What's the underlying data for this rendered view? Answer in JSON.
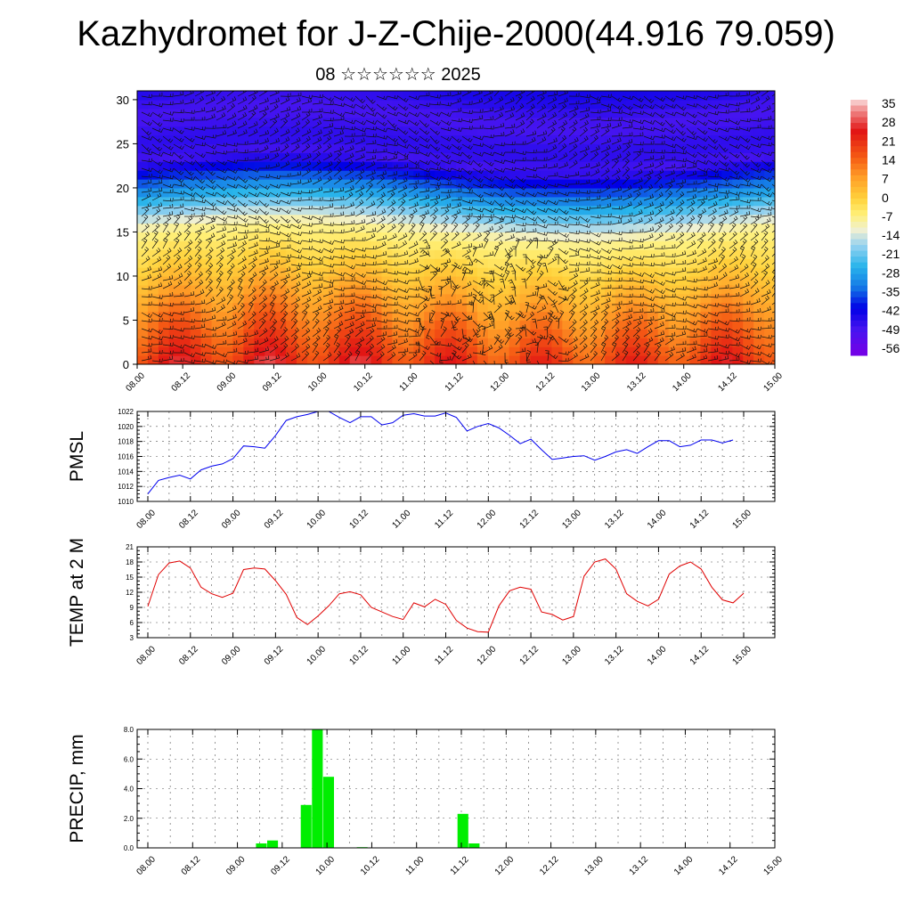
{
  "header": {
    "title": "Kazhydromet for J-Z-Chije-2000(44.916 79.059)",
    "date": "08 ☆☆☆☆☆☆ 2025"
  },
  "time_labels": [
    "08.00",
    "08.12",
    "09.00",
    "09.12",
    "10.00",
    "10.12",
    "11.00",
    "11.12",
    "12.00",
    "12.12",
    "13.00",
    "13.12",
    "14.00",
    "14.12",
    "15.00"
  ],
  "colors": {
    "pmsl_line": "#0000ee",
    "temp_line": "#e00000",
    "precip_bar": "#00ee00",
    "grid": "#555555"
  },
  "chart_data": [
    {
      "type": "heatmap",
      "x_categories": [
        "08.00",
        "08.12",
        "09.00",
        "09.12",
        "10.00",
        "10.12",
        "11.00",
        "11.12",
        "12.00",
        "12.12",
        "13.00",
        "13.12",
        "14.00",
        "14.12",
        "15.00"
      ],
      "ylim": [
        0,
        31
      ],
      "yticks": [
        0,
        5,
        10,
        15,
        20,
        25,
        30
      ],
      "colorbar": {
        "labels": [
          "35",
          "28",
          "21",
          "14",
          "7",
          "0",
          "-7",
          "-14",
          "-21",
          "-28",
          "-35",
          "-42",
          "-49",
          "-56"
        ],
        "range": [
          -60,
          38
        ]
      },
      "overlay": "wind barbs"
    },
    {
      "type": "line",
      "ylabel": "PMSL",
      "ylim": [
        1010,
        1022
      ],
      "yticks": [
        1010,
        1012,
        1014,
        1016,
        1018,
        1020,
        1022
      ],
      "x_start": 0,
      "x_step": 3,
      "values": [
        1011.0,
        1012.8,
        1013.2,
        1013.5,
        1013.0,
        1014.2,
        1014.7,
        1015.0,
        1015.7,
        1017.4,
        1017.3,
        1017.1,
        1018.8,
        1020.8,
        1021.3,
        1021.6,
        1022.0,
        1022.0,
        1021.2,
        1020.5,
        1021.3,
        1021.3,
        1020.2,
        1020.5,
        1021.5,
        1021.7,
        1021.4,
        1021.4,
        1021.8,
        1021.2,
        1019.4,
        1020.0,
        1020.4,
        1019.8,
        1018.8,
        1017.7,
        1018.3,
        1016.9,
        1015.6,
        1015.8,
        1016.0,
        1016.1,
        1015.5,
        1016.0,
        1016.6,
        1016.9,
        1016.4,
        1017.3,
        1018.1,
        1018.1,
        1017.3,
        1017.5,
        1018.2,
        1018.2,
        1017.8,
        1018.2
      ]
    },
    {
      "type": "line",
      "ylabel": "TEMP at 2 M",
      "ylim": [
        3,
        21
      ],
      "yticks": [
        3,
        6,
        9,
        12,
        15,
        18,
        21
      ],
      "x_start": 0,
      "x_step": 3,
      "values": [
        9.2,
        15.5,
        17.8,
        18.2,
        16.8,
        13.0,
        11.7,
        11.0,
        11.8,
        16.5,
        16.8,
        16.6,
        14.3,
        11.6,
        7.0,
        5.6,
        7.3,
        9.3,
        11.7,
        12.1,
        11.5,
        9.0,
        8.1,
        7.2,
        6.6,
        9.9,
        9.1,
        10.6,
        9.6,
        6.4,
        4.9,
        4.2,
        4.1,
        9.3,
        12.3,
        13.0,
        12.6,
        8.1,
        7.6,
        6.5,
        7.2,
        15.2,
        18.0,
        18.6,
        16.6,
        11.7,
        10.2,
        9.3,
        10.6,
        15.6,
        17.2,
        18.0,
        16.6,
        13.0,
        10.5,
        9.9,
        11.8
      ]
    },
    {
      "type": "bar",
      "ylabel": "PRECIP, mm",
      "ylim": [
        0,
        8
      ],
      "yticks": [
        "0.0",
        "2.0",
        "4.0",
        "6.0",
        "8.0"
      ],
      "x_start": 0,
      "x_step": 3,
      "values": [
        0,
        0,
        0,
        0,
        0,
        0,
        0,
        0,
        0,
        0,
        0.3,
        0.5,
        0,
        0,
        2.9,
        8.0,
        4.8,
        0,
        0,
        0.05,
        0,
        0,
        0,
        0,
        0,
        0,
        0,
        0,
        2.3,
        0.3,
        0,
        0,
        0,
        0,
        0,
        0,
        0,
        0,
        0,
        0,
        0,
        0,
        0,
        0,
        0,
        0,
        0,
        0,
        0,
        0,
        0,
        0,
        0,
        0,
        0,
        0,
        0
      ]
    }
  ]
}
